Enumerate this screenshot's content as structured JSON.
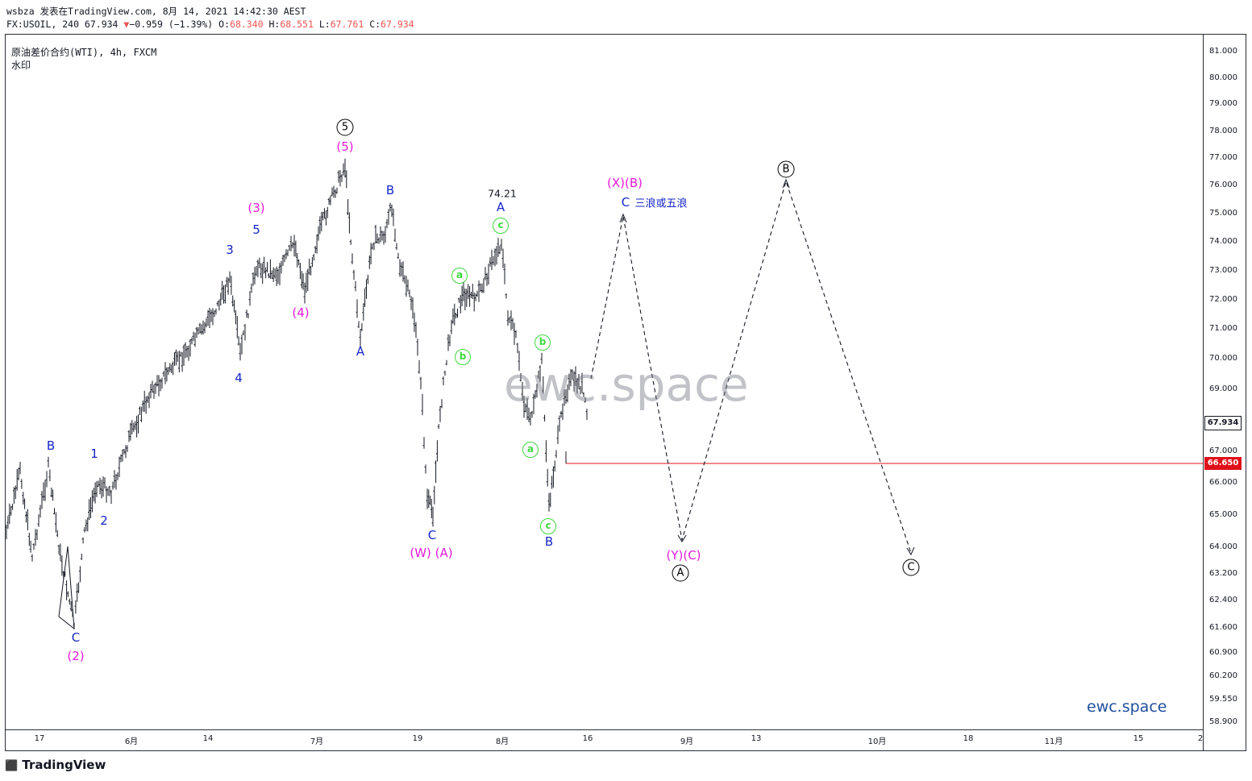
{
  "header": {
    "line1": "wsbza 发表在TradingView.com, 8月 14, 2021 14:42:30 AEST",
    "symbol": "FX:USOIL, 240 67.934",
    "change_arrow": "▼",
    "change": "−0.959 (−1.39%)",
    "o_label": "O:",
    "o_value": "68.340",
    "h_label": "H:",
    "h_value": "68.551",
    "l_label": "L:",
    "l_value": "67.761",
    "c_label": "C:",
    "c_value": "67.934"
  },
  "legend": {
    "title": "原油差价合约(WTI), 4h, FXCM",
    "watermark_label": "水印"
  },
  "price_axis": {
    "ticks": [
      "81.000",
      "80.000",
      "79.000",
      "78.000",
      "77.000",
      "76.000",
      "75.000",
      "74.000",
      "73.000",
      "72.000",
      "71.000",
      "70.000",
      "69.000",
      "67.000",
      "66.000",
      "65.000",
      "64.000",
      "63.200",
      "62.400",
      "61.600",
      "60.900",
      "60.200",
      "59.550",
      "58.900"
    ],
    "last_price": "67.934",
    "last_price_color": "#131722",
    "level_price": "66.650",
    "level_color": "#e0101a"
  },
  "time_axis": {
    "ticks": [
      "17",
      "6月",
      "14",
      "7月",
      "19",
      "8月",
      "16",
      "9月",
      "13",
      "10月",
      "18",
      "11月",
      "15",
      "2"
    ]
  },
  "labels": {
    "wave_5_circled": "5",
    "wave_5_paren": "(5)",
    "wave_3_paren": "(3)",
    "wave_4_paren": "(4)",
    "w3": "3",
    "w5": "5",
    "w4": "4",
    "w1": "1",
    "w2": "2",
    "wB_left": "B",
    "wC_left": "C",
    "w2_paren": "(2)",
    "wA_mid": "A",
    "wB_mid": "B",
    "wC_mid": "C",
    "wWA": "(W) (A)",
    "price_high": "74.21",
    "wA_right": "A",
    "g_c_top": "c",
    "g_a_top": "a",
    "g_b_top": "b",
    "g_b_right": "b",
    "g_a_right": "a",
    "g_c_right": "c",
    "wB_right": "B",
    "xb_label": "(X)(B)",
    "c_proj": "C",
    "c_proj_note": "三浪或五浪",
    "yc_label": "(Y)(C)",
    "A_circled": "A",
    "B_circled": "B",
    "C_circled": "C"
  },
  "watermark": "ewc.space",
  "brand_watermark": "ewc.space",
  "footer_logo": "TradingView"
}
